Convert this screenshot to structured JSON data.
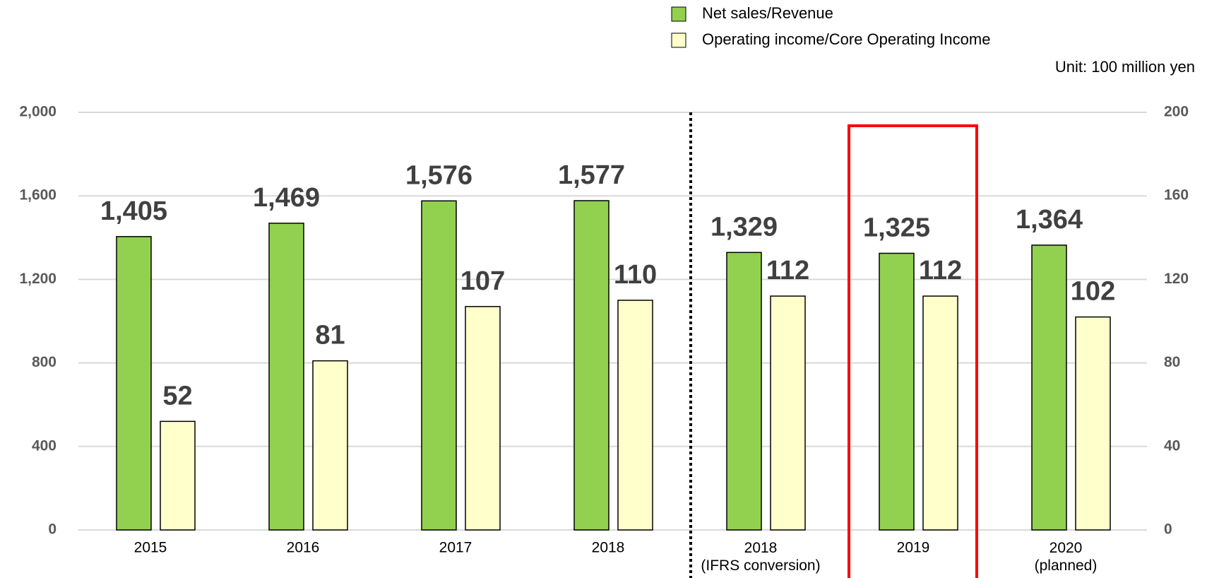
{
  "chart_data": {
    "type": "bar",
    "annotations": [
      "Unit: 100 million yen"
    ],
    "categories": [
      "2015",
      "2016",
      "2017",
      "2018",
      "2018\n(IFRS conversion)",
      "2019",
      "2020\n(planned)"
    ],
    "series": [
      {
        "name": "Net sales/Revenue",
        "color": "#92d050",
        "values": [
          1405,
          1469,
          1576,
          1577,
          1329,
          1325,
          1364
        ],
        "value_labels": [
          "1,405",
          "1,469",
          "1,576",
          "1,577",
          "1,329",
          "1,325",
          "1,364"
        ]
      },
      {
        "name": "Operating income/Core Operating Income",
        "color": "#ffffcc",
        "axis": "y2",
        "values": [
          52,
          81,
          107,
          110,
          112,
          112,
          102
        ]
      }
    ],
    "ylim": [
      0,
      2000
    ],
    "yticks": [
      0,
      400,
      800,
      {
        "value": 1200,
        "label": "1,200"
      },
      {
        "value": 1600,
        "label": "1,600"
      },
      {
        "value": 2000,
        "label": "2,000"
      }
    ],
    "y2lim": [
      0,
      200
    ],
    "y2ticks": [
      0,
      40,
      80,
      120,
      160,
      200
    ],
    "grid": true,
    "legend": "top"
  }
}
